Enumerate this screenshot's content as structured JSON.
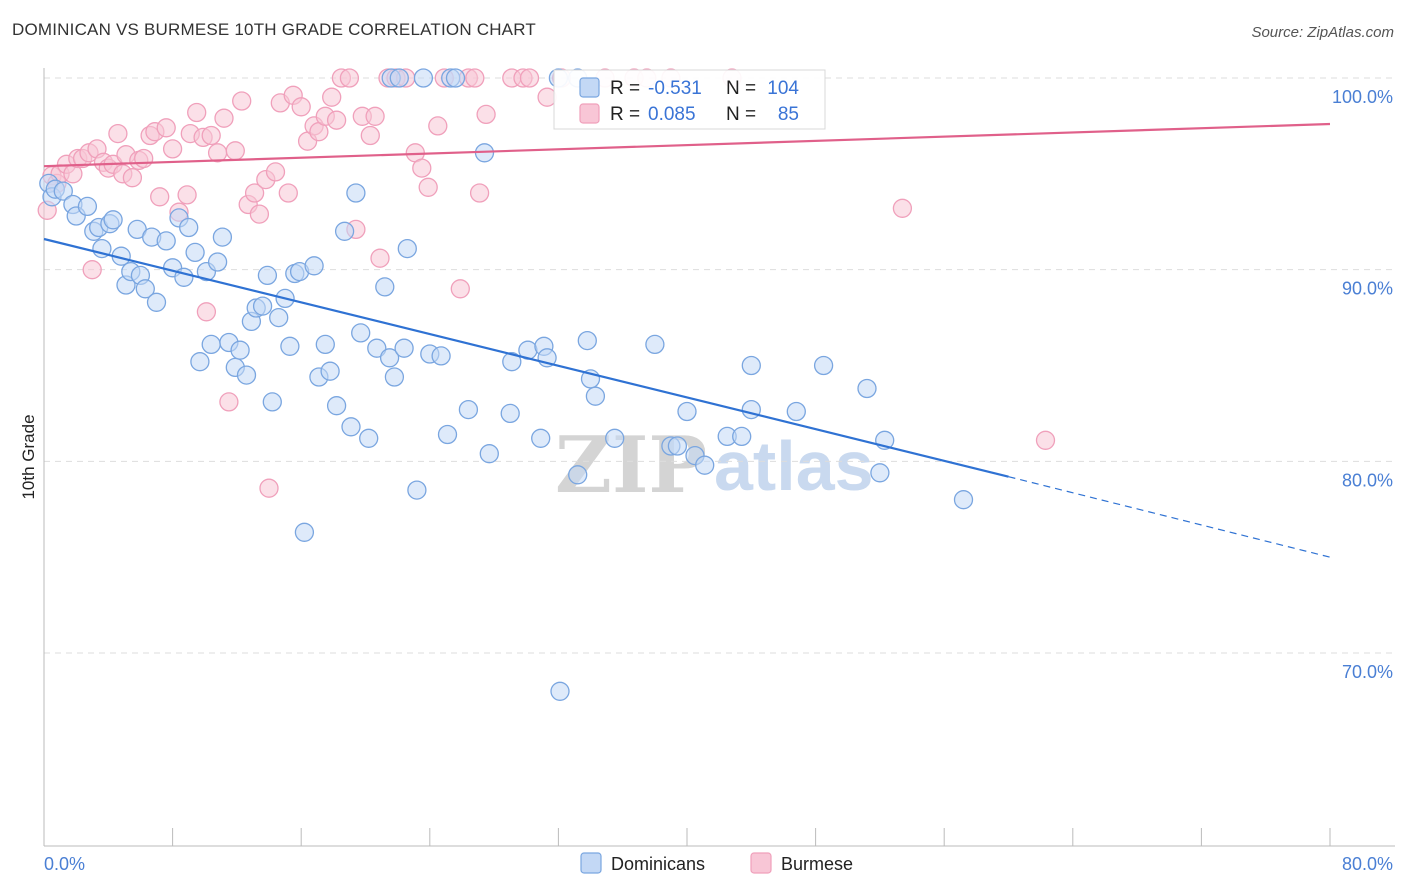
{
  "title": "DOMINICAN VS BURMESE 10TH GRADE CORRELATION CHART",
  "source": "Source: ZipAtlas.com",
  "watermark": {
    "zip": "ZIP",
    "atlas": "atlas"
  },
  "legend_box": {
    "rows": [
      {
        "r_label": "R = ",
        "r_value": "-0.531",
        "n_label": "N = ",
        "n_value": "104"
      },
      {
        "r_label": "R = ",
        "r_value": "0.085",
        "n_label": "N = ",
        "n_value": "85"
      }
    ]
  },
  "chart_data": {
    "type": "scatter",
    "xlabel": "",
    "ylabel": "10th Grade",
    "xlim": [
      0,
      80
    ],
    "ylim": [
      60,
      100
    ],
    "x_tick_labels": [
      "0.0%",
      "80.0%"
    ],
    "y_ticks": [
      70,
      80,
      90,
      100
    ],
    "y_tick_labels": [
      "70.0%",
      "80.0%",
      "90.0%",
      "100.0%"
    ],
    "grid": "horizontal dashed",
    "legend_position": "bottom-center",
    "series": [
      {
        "name": "Dominicans",
        "color": "#7aa6e0",
        "trend_color": "#2f72d3",
        "trend": {
          "x0": 0,
          "y0": 91.6,
          "x1": 60,
          "y1": 79.2,
          "dashed_to_x": 80,
          "dashed_to_y": 75.0
        },
        "points": [
          [
            0.3,
            94.5
          ],
          [
            0.5,
            93.8
          ],
          [
            0.7,
            94.2
          ],
          [
            1.2,
            94.1
          ],
          [
            1.8,
            93.4
          ],
          [
            2.0,
            92.8
          ],
          [
            2.7,
            93.3
          ],
          [
            3.1,
            92.0
          ],
          [
            3.4,
            92.2
          ],
          [
            3.6,
            91.1
          ],
          [
            4.1,
            92.4
          ],
          [
            4.3,
            92.6
          ],
          [
            4.8,
            90.7
          ],
          [
            5.1,
            89.2
          ],
          [
            5.4,
            89.9
          ],
          [
            5.8,
            92.1
          ],
          [
            6.0,
            89.7
          ],
          [
            6.3,
            89.0
          ],
          [
            6.7,
            91.7
          ],
          [
            7.0,
            88.3
          ],
          [
            7.6,
            91.5
          ],
          [
            8.0,
            90.1
          ],
          [
            8.4,
            92.7
          ],
          [
            8.7,
            89.6
          ],
          [
            9.0,
            92.2
          ],
          [
            9.4,
            90.9
          ],
          [
            9.7,
            85.2
          ],
          [
            10.1,
            89.9
          ],
          [
            10.4,
            86.1
          ],
          [
            10.8,
            90.4
          ],
          [
            11.1,
            91.7
          ],
          [
            11.5,
            86.2
          ],
          [
            11.9,
            84.9
          ],
          [
            12.2,
            85.8
          ],
          [
            12.6,
            84.5
          ],
          [
            12.9,
            87.3
          ],
          [
            13.2,
            88.0
          ],
          [
            13.6,
            88.1
          ],
          [
            13.9,
            89.7
          ],
          [
            14.2,
            83.1
          ],
          [
            14.6,
            87.5
          ],
          [
            15.0,
            88.5
          ],
          [
            15.3,
            86.0
          ],
          [
            15.6,
            89.8
          ],
          [
            15.9,
            89.9
          ],
          [
            16.2,
            76.3
          ],
          [
            16.8,
            90.2
          ],
          [
            17.1,
            84.4
          ],
          [
            17.5,
            86.1
          ],
          [
            17.8,
            84.7
          ],
          [
            18.2,
            82.9
          ],
          [
            18.7,
            92.0
          ],
          [
            19.1,
            81.8
          ],
          [
            19.4,
            94.0
          ],
          [
            19.7,
            86.7
          ],
          [
            20.2,
            81.2
          ],
          [
            20.7,
            85.9
          ],
          [
            21.2,
            89.1
          ],
          [
            21.5,
            85.4
          ],
          [
            21.8,
            84.4
          ],
          [
            22.4,
            85.9
          ],
          [
            22.6,
            91.1
          ],
          [
            23.2,
            78.5
          ],
          [
            24.0,
            85.6
          ],
          [
            24.7,
            85.5
          ],
          [
            25.1,
            81.4
          ],
          [
            26.4,
            82.7
          ],
          [
            27.4,
            96.1
          ],
          [
            27.7,
            80.4
          ],
          [
            29.0,
            82.5
          ],
          [
            29.1,
            85.2
          ],
          [
            30.1,
            85.8
          ],
          [
            30.9,
            81.2
          ],
          [
            31.1,
            86.0
          ],
          [
            31.3,
            85.4
          ],
          [
            32.1,
            68.0
          ],
          [
            33.2,
            79.3
          ],
          [
            33.8,
            86.3
          ],
          [
            34.0,
            84.3
          ],
          [
            34.3,
            83.4
          ],
          [
            35.5,
            81.2
          ],
          [
            38.0,
            86.1
          ],
          [
            39.0,
            80.8
          ],
          [
            39.4,
            80.8
          ],
          [
            40.0,
            82.6
          ],
          [
            40.5,
            80.3
          ],
          [
            41.1,
            79.8
          ],
          [
            42.5,
            81.3
          ],
          [
            43.4,
            81.3
          ],
          [
            44.0,
            82.7
          ],
          [
            44.0,
            85.0
          ],
          [
            46.8,
            82.6
          ],
          [
            48.5,
            85.0
          ],
          [
            51.2,
            83.8
          ],
          [
            52.0,
            79.4
          ],
          [
            52.3,
            81.1
          ],
          [
            57.2,
            78.0
          ],
          [
            21.6,
            100
          ],
          [
            22.1,
            100
          ],
          [
            23.6,
            100
          ],
          [
            25.3,
            100
          ],
          [
            25.6,
            100
          ],
          [
            32.0,
            100
          ],
          [
            33.2,
            100
          ]
        ]
      },
      {
        "name": "Burmese",
        "color": "#f0a0bb",
        "trend_color": "#e0608a",
        "trend": {
          "x0": 0,
          "y0": 95.4,
          "x1": 80,
          "y1": 97.6
        },
        "points": [
          [
            0.2,
            93.1
          ],
          [
            0.5,
            94.9
          ],
          [
            0.8,
            94.5
          ],
          [
            1.0,
            95.0
          ],
          [
            1.4,
            95.5
          ],
          [
            1.8,
            95.0
          ],
          [
            2.1,
            95.8
          ],
          [
            2.4,
            95.8
          ],
          [
            2.8,
            96.1
          ],
          [
            3.0,
            90.0
          ],
          [
            3.3,
            96.3
          ],
          [
            3.7,
            95.6
          ],
          [
            4.0,
            95.3
          ],
          [
            4.3,
            95.5
          ],
          [
            4.6,
            97.1
          ],
          [
            4.9,
            95.0
          ],
          [
            5.1,
            96.0
          ],
          [
            5.5,
            94.8
          ],
          [
            5.9,
            95.7
          ],
          [
            6.2,
            95.8
          ],
          [
            6.6,
            97.0
          ],
          [
            6.9,
            97.2
          ],
          [
            7.2,
            93.8
          ],
          [
            7.6,
            97.4
          ],
          [
            8.0,
            96.3
          ],
          [
            8.4,
            93.0
          ],
          [
            8.9,
            93.9
          ],
          [
            9.1,
            97.1
          ],
          [
            9.5,
            98.2
          ],
          [
            9.9,
            96.9
          ],
          [
            10.1,
            87.8
          ],
          [
            10.4,
            97.0
          ],
          [
            10.8,
            96.1
          ],
          [
            11.2,
            97.9
          ],
          [
            11.5,
            83.1
          ],
          [
            11.9,
            96.2
          ],
          [
            12.3,
            98.8
          ],
          [
            12.7,
            93.4
          ],
          [
            13.1,
            94.0
          ],
          [
            13.4,
            92.9
          ],
          [
            13.8,
            94.7
          ],
          [
            14.0,
            78.6
          ],
          [
            14.4,
            95.1
          ],
          [
            14.7,
            98.7
          ],
          [
            15.2,
            94.0
          ],
          [
            15.5,
            99.1
          ],
          [
            16.0,
            98.5
          ],
          [
            16.4,
            96.7
          ],
          [
            16.8,
            97.5
          ],
          [
            17.1,
            97.2
          ],
          [
            17.5,
            98.0
          ],
          [
            17.9,
            99.0
          ],
          [
            18.2,
            97.8
          ],
          [
            18.5,
            100
          ],
          [
            19.0,
            100
          ],
          [
            19.4,
            92.1
          ],
          [
            19.8,
            98.0
          ],
          [
            20.3,
            97.0
          ],
          [
            20.6,
            98.0
          ],
          [
            20.9,
            90.6
          ],
          [
            21.4,
            100
          ],
          [
            21.9,
            100
          ],
          [
            22.5,
            100
          ],
          [
            23.1,
            96.1
          ],
          [
            23.5,
            95.3
          ],
          [
            23.9,
            94.3
          ],
          [
            24.5,
            97.5
          ],
          [
            24.9,
            100
          ],
          [
            25.9,
            89.0
          ],
          [
            26.4,
            100
          ],
          [
            26.8,
            100
          ],
          [
            27.1,
            94.0
          ],
          [
            27.5,
            98.1
          ],
          [
            29.1,
            100
          ],
          [
            29.8,
            100
          ],
          [
            30.2,
            100
          ],
          [
            31.3,
            99.0
          ],
          [
            32.2,
            100
          ],
          [
            34.9,
            100
          ],
          [
            36.7,
            100
          ],
          [
            37.5,
            100
          ],
          [
            39.0,
            100
          ],
          [
            42.8,
            100
          ],
          [
            53.4,
            93.2
          ],
          [
            62.3,
            81.1
          ]
        ]
      }
    ]
  }
}
